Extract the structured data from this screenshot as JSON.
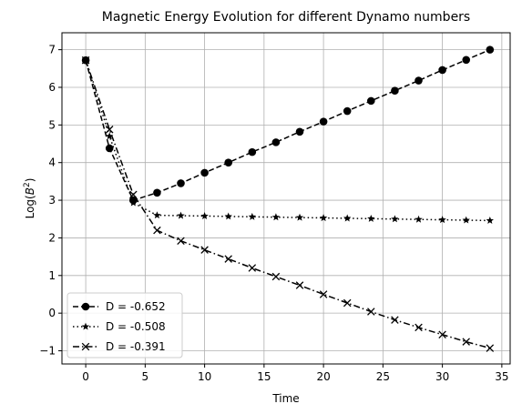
{
  "chart_data": {
    "type": "line",
    "title": "Magnetic Energy Evolution for different Dynamo numbers",
    "xlabel": "Time",
    "ylabel_main": "Log(",
    "ylabel_var": "B",
    "ylabel_sup": "2",
    "ylabel_end": ")",
    "xlim": [
      -2.0,
      35.7
    ],
    "ylim": [
      -1.35,
      7.45
    ],
    "xticks": [
      0,
      5,
      10,
      15,
      20,
      25,
      30,
      35
    ],
    "yticks": [
      -1,
      0,
      1,
      2,
      3,
      4,
      5,
      6,
      7
    ],
    "grid": true,
    "legend_position": "lower-left",
    "series": [
      {
        "name": "D = -0.652",
        "linestyle": "dashed",
        "marker": "circle",
        "x": [
          0,
          2,
          4,
          6,
          8,
          10,
          12,
          14,
          16,
          18,
          20,
          22,
          24,
          26,
          28,
          30,
          32,
          34
        ],
        "y": [
          6.72,
          4.38,
          3.0,
          3.2,
          3.45,
          3.73,
          4.0,
          4.28,
          4.54,
          4.82,
          5.09,
          5.37,
          5.64,
          5.91,
          6.18,
          6.46,
          6.73,
          7.0
        ]
      },
      {
        "name": "D = -0.508",
        "linestyle": "dotted",
        "marker": "star",
        "x": [
          0,
          2,
          4,
          6,
          8,
          10,
          12,
          14,
          16,
          18,
          20,
          22,
          24,
          26,
          28,
          30,
          32,
          34
        ],
        "y": [
          6.72,
          4.7,
          2.93,
          2.6,
          2.59,
          2.58,
          2.57,
          2.56,
          2.55,
          2.54,
          2.53,
          2.52,
          2.51,
          2.5,
          2.49,
          2.48,
          2.47,
          2.46
        ]
      },
      {
        "name": "D = -0.391",
        "linestyle": "dashdot",
        "marker": "x",
        "x": [
          0,
          2,
          4,
          6,
          8,
          10,
          12,
          14,
          16,
          18,
          20,
          22,
          24,
          26,
          28,
          30,
          32,
          34
        ],
        "y": [
          6.72,
          4.88,
          3.15,
          2.2,
          1.92,
          1.68,
          1.44,
          1.2,
          0.97,
          0.74,
          0.5,
          0.27,
          0.04,
          -0.18,
          -0.38,
          -0.57,
          -0.76,
          -0.93
        ]
      }
    ]
  },
  "colors": {
    "line": "#000000",
    "grid": "#b0b0b0",
    "legend_border": "#cccccc"
  }
}
